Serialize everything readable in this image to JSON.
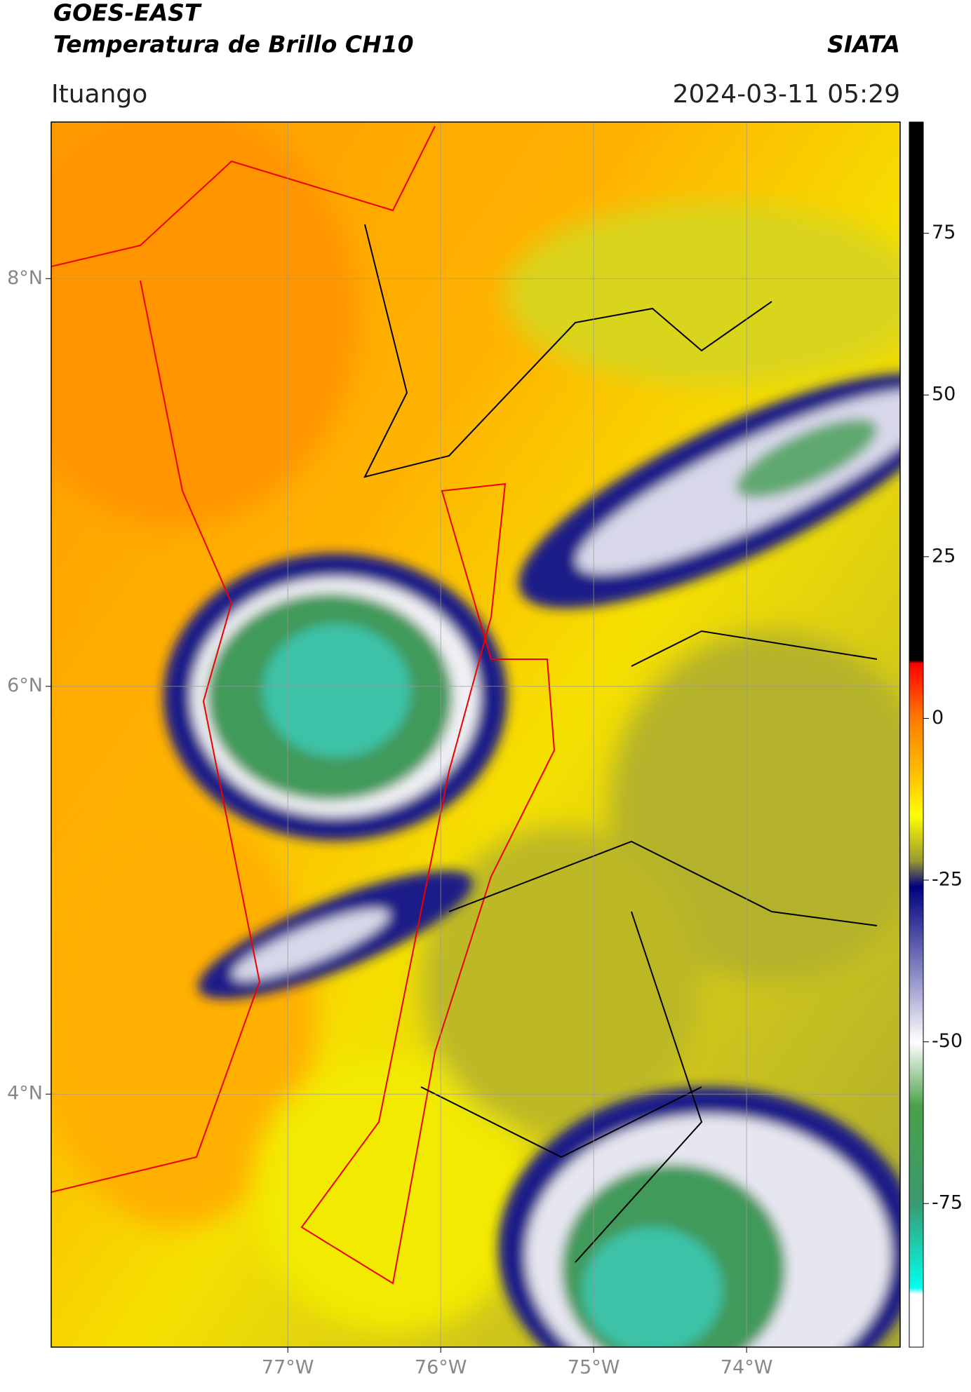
{
  "header": {
    "title": "GOES-EAST",
    "subtitle": "Temperatura de Brillo CH10",
    "source": "SIATA",
    "location": "Ituango",
    "datetime": "2024-03-11 05:29"
  },
  "map": {
    "xlim": [
      -78.547,
      -72.996
    ],
    "ylim": [
      2.759,
      8.768
    ],
    "xticks": [
      {
        "value": -77,
        "label": "77°W"
      },
      {
        "value": -76,
        "label": "76°W"
      },
      {
        "value": -75,
        "label": "75°W"
      },
      {
        "value": -74,
        "label": "74°W"
      }
    ],
    "yticks": [
      {
        "value": 4,
        "label": "4°N"
      },
      {
        "value": 6,
        "label": "6°N"
      },
      {
        "value": 8,
        "label": "8°N"
      }
    ],
    "grid": true
  },
  "colorbar": {
    "lim": [
      -97.2,
      92.2
    ],
    "ticks": [
      -75,
      -50,
      -25,
      0,
      25,
      50,
      75
    ]
  }
}
